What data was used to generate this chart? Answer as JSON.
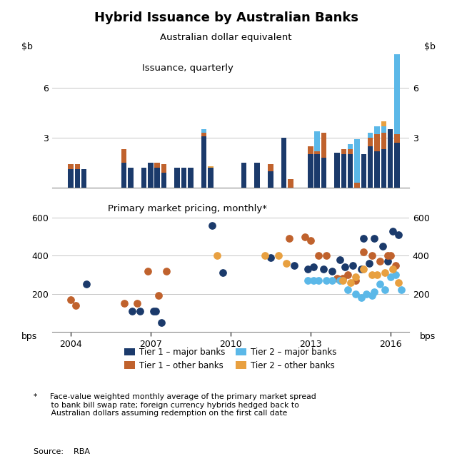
{
  "title": "Hybrid Issuance by Australian Banks",
  "subtitle": "Australian dollar equivalent",
  "top_label": "Issuance, quarterly",
  "bottom_label": "Primary market pricing, monthly*",
  "source": "Source:    RBA",
  "colors": {
    "tier1_major": "#1B3A6B",
    "tier1_other": "#C0622D",
    "tier2_major": "#5BB8E8",
    "tier2_other": "#E8A040"
  },
  "bar_xlim": [
    2003.3,
    2016.7
  ],
  "scatter_xlim": [
    2003.3,
    2016.7
  ],
  "bar_ylim": [
    0,
    8
  ],
  "scatter_ylim": [
    0,
    700
  ],
  "bar_yticks": [
    0,
    3,
    6
  ],
  "scatter_yticks": [
    0,
    200,
    400,
    600
  ],
  "xticks": [
    2004,
    2007,
    2010,
    2013,
    2016
  ],
  "bar_data": {
    "quarters": [
      2004.0,
      2004.25,
      2004.5,
      2006.0,
      2006.25,
      2006.75,
      2007.0,
      2007.25,
      2007.5,
      2008.0,
      2008.25,
      2008.5,
      2009.0,
      2009.25,
      2010.5,
      2011.0,
      2011.25,
      2011.5,
      2011.75,
      2012.0,
      2012.25,
      2012.5,
      2013.0,
      2013.25,
      2013.5,
      2013.75,
      2014.0,
      2014.25,
      2014.5,
      2014.75,
      2015.0,
      2015.25,
      2015.5,
      2015.75,
      2016.0,
      2016.25
    ],
    "tier1_major": [
      1.1,
      1.1,
      1.1,
      1.5,
      1.2,
      1.2,
      1.5,
      1.2,
      0.9,
      1.2,
      1.2,
      1.2,
      3.1,
      1.2,
      1.5,
      1.5,
      0.0,
      1.0,
      0.0,
      3.0,
      0.0,
      0.0,
      2.0,
      2.0,
      1.8,
      0.0,
      2.1,
      2.0,
      2.0,
      0.0,
      2.0,
      2.5,
      2.2,
      2.3,
      3.5,
      2.7
    ],
    "tier1_other": [
      0.3,
      0.3,
      0.0,
      0.8,
      0.0,
      0.0,
      0.0,
      0.3,
      0.5,
      0.0,
      0.0,
      0.0,
      0.2,
      0.0,
      0.0,
      0.0,
      0.0,
      0.4,
      0.0,
      0.0,
      0.5,
      0.0,
      0.5,
      0.2,
      1.5,
      0.0,
      0.0,
      0.3,
      0.3,
      0.3,
      0.0,
      0.5,
      1.0,
      1.0,
      0.0,
      0.5
    ],
    "tier2_major": [
      0.0,
      0.0,
      0.0,
      0.0,
      0.0,
      0.0,
      0.0,
      0.0,
      0.0,
      0.0,
      0.0,
      0.0,
      0.2,
      0.0,
      0.0,
      0.0,
      0.0,
      0.0,
      0.0,
      0.0,
      0.0,
      0.0,
      0.0,
      1.2,
      0.0,
      0.0,
      0.0,
      0.0,
      0.3,
      2.6,
      0.0,
      0.3,
      0.5,
      0.4,
      0.0,
      7.0
    ],
    "tier2_other": [
      0.0,
      0.0,
      0.0,
      0.0,
      0.0,
      0.0,
      0.0,
      0.0,
      0.0,
      0.0,
      0.0,
      0.0,
      0.0,
      0.1,
      0.0,
      0.0,
      0.0,
      0.0,
      0.0,
      0.0,
      0.0,
      0.0,
      0.0,
      0.0,
      0.0,
      0.0,
      0.0,
      0.0,
      0.0,
      0.0,
      0.0,
      0.0,
      0.0,
      0.3,
      0.0,
      0.0
    ]
  },
  "scatter_data": {
    "tier1_major_x": [
      2004.6,
      2006.3,
      2006.6,
      2007.1,
      2007.2,
      2007.4,
      2009.3,
      2009.7,
      2011.5,
      2012.4,
      2012.9,
      2013.1,
      2013.5,
      2013.8,
      2014.1,
      2014.3,
      2014.6,
      2014.9,
      2015.0,
      2015.2,
      2015.4,
      2015.7,
      2015.9,
      2016.1,
      2016.3
    ],
    "tier1_major_y": [
      250,
      110,
      110,
      110,
      110,
      50,
      560,
      310,
      390,
      350,
      330,
      340,
      330,
      320,
      380,
      340,
      350,
      330,
      490,
      360,
      490,
      450,
      370,
      530,
      510
    ],
    "tier1_other_x": [
      2004.0,
      2004.2,
      2006.0,
      2006.5,
      2006.9,
      2007.3,
      2007.6,
      2012.2,
      2012.8,
      2013.0,
      2013.3,
      2013.6,
      2014.0,
      2014.2,
      2014.4,
      2014.7,
      2015.0,
      2015.3,
      2015.6,
      2015.9,
      2016.0,
      2016.2
    ],
    "tier1_other_y": [
      170,
      140,
      150,
      150,
      320,
      190,
      320,
      490,
      500,
      480,
      400,
      400,
      280,
      280,
      300,
      270,
      420,
      400,
      370,
      400,
      400,
      350
    ],
    "tier2_major_x": [
      2012.9,
      2013.1,
      2013.3,
      2013.6,
      2013.8,
      2014.1,
      2014.4,
      2014.7,
      2014.9,
      2015.1,
      2015.3,
      2015.4,
      2015.6,
      2015.8,
      2016.0,
      2016.2,
      2016.4
    ],
    "tier2_major_y": [
      270,
      270,
      270,
      270,
      270,
      270,
      220,
      200,
      180,
      200,
      190,
      210,
      250,
      220,
      290,
      300,
      220
    ],
    "tier2_other_x": [
      2009.5,
      2011.3,
      2011.8,
      2012.1,
      2014.2,
      2014.5,
      2014.7,
      2015.0,
      2015.3,
      2015.5,
      2015.8,
      2016.1,
      2016.3
    ],
    "tier2_other_y": [
      400,
      400,
      400,
      360,
      270,
      260,
      290,
      330,
      300,
      300,
      310,
      330,
      260
    ]
  },
  "legend": [
    {
      "label": "Tier 1 – major banks",
      "color": "#1B3A6B"
    },
    {
      "label": "Tier 1 – other banks",
      "color": "#C0622D"
    },
    {
      "label": "Tier 2 – major banks",
      "color": "#5BB8E8"
    },
    {
      "label": "Tier 2 – other banks",
      "color": "#E8A040"
    }
  ]
}
